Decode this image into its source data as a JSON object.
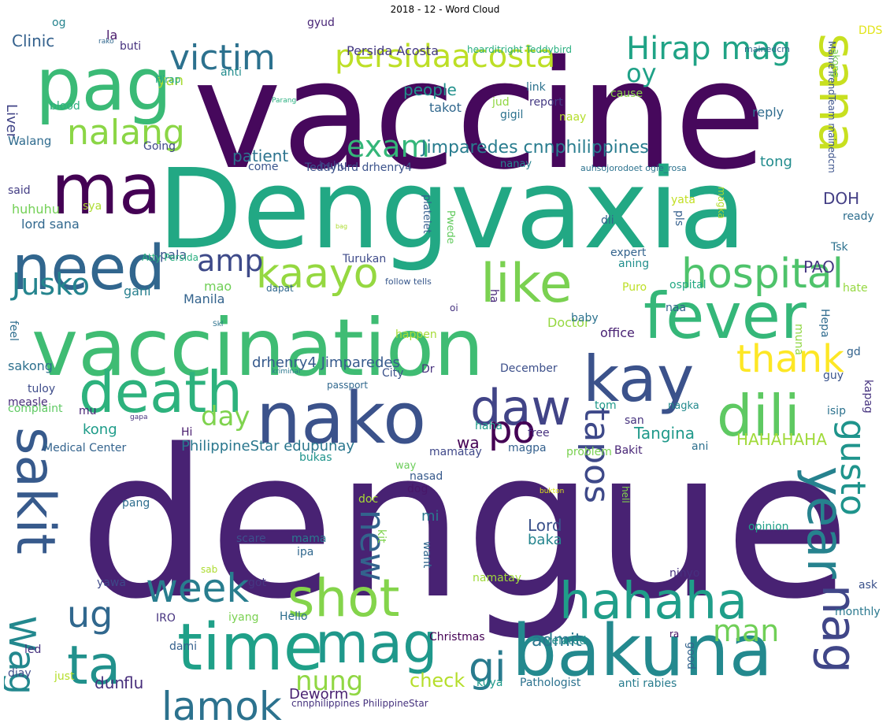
{
  "title": "2018 - 12 - Word Cloud",
  "colormap": "viridis",
  "words": [
    {
      "text": "dengue",
      "color": "#482273"
    },
    {
      "text": "vaccine",
      "color": "#46085c"
    },
    {
      "text": "Dengvaxia",
      "color": "#22a884"
    },
    {
      "text": "vaccination",
      "color": "#3fbc73"
    },
    {
      "text": "nako",
      "color": "#3b528b"
    },
    {
      "text": "bakuna",
      "color": "#23898e"
    },
    {
      "text": "pag",
      "color": "#3aba76"
    },
    {
      "text": "ma",
      "color": "#440154"
    },
    {
      "text": "death",
      "color": "#2db27d"
    },
    {
      "text": "time",
      "color": "#1fa088"
    },
    {
      "text": "need",
      "color": "#31668e"
    },
    {
      "text": "fever",
      "color": "#35b779"
    },
    {
      "text": "kay",
      "color": "#3b528b"
    },
    {
      "text": "dili",
      "color": "#5ec962"
    },
    {
      "text": "like",
      "color": "#7ad151"
    },
    {
      "text": "shot",
      "color": "#84d44b"
    },
    {
      "text": "hahaha",
      "color": "#1f9e89"
    },
    {
      "text": "year",
      "color": "#26828e"
    },
    {
      "text": "mag",
      "color": "#1f988b"
    },
    {
      "text": "ta",
      "color": "#21918c"
    },
    {
      "text": "lamok",
      "color": "#2c728e"
    },
    {
      "text": "sakit",
      "color": "#375a8c"
    },
    {
      "text": "sana",
      "color": "#c8e020"
    },
    {
      "text": "daw",
      "color": "#414487"
    },
    {
      "text": "hospital",
      "color": "#4ec36b"
    },
    {
      "text": "kaayo",
      "color": "#95d840"
    },
    {
      "text": "nalang",
      "color": "#8bd646"
    },
    {
      "text": "victim",
      "color": "#2c718e"
    },
    {
      "text": "persidaacosta",
      "color": "#bddf26"
    },
    {
      "text": "Hirap mag",
      "color": "#20a386"
    },
    {
      "text": "exam",
      "color": "#34b679"
    },
    {
      "text": "Jimparedes cnnphilippines",
      "color": "#287c8e"
    },
    {
      "text": "thank",
      "color": "#fde725"
    },
    {
      "text": "tapos",
      "color": "#3e4989"
    },
    {
      "text": "gusto",
      "color": "#1f948c"
    },
    {
      "text": "week",
      "color": "#287d8e"
    },
    {
      "text": "ug",
      "color": "#31688e"
    },
    {
      "text": "Wag",
      "color": "#23888e"
    },
    {
      "text": "gi",
      "color": "#297b8e"
    },
    {
      "text": "nag",
      "color": "#404688"
    },
    {
      "text": "man",
      "color": "#70cf57"
    },
    {
      "text": "nung",
      "color": "#90d743"
    },
    {
      "text": "Jusko",
      "color": "#25848e"
    },
    {
      "text": "amp",
      "color": "#3e4a89"
    },
    {
      "text": "day",
      "color": "#7fd34e"
    },
    {
      "text": "po",
      "color": "#440154"
    },
    {
      "text": "new",
      "color": "#33638d"
    },
    {
      "text": "oy",
      "color": "#1fa187"
    },
    {
      "text": "check",
      "color": "#b5de2b"
    },
    {
      "text": "admit",
      "color": "#2a768e"
    },
    {
      "text": "dun",
      "color": "#46327e"
    },
    {
      "text": "flu",
      "color": "#472d7b"
    },
    {
      "text": "Deworm",
      "color": "#482071"
    },
    {
      "text": "Tangina",
      "color": "#1f998a"
    },
    {
      "text": "HAHAHAHA",
      "color": "#a0da39"
    },
    {
      "text": "kong",
      "color": "#1e9c89"
    },
    {
      "text": "PhilippineStar edupunay",
      "color": "#2a778e"
    },
    {
      "text": "drhenry4 Jimparedes",
      "color": "#375b8d"
    },
    {
      "text": "patient",
      "color": "#2c738e"
    },
    {
      "text": "tong",
      "color": "#228c8d"
    },
    {
      "text": "DOH",
      "color": "#433e85"
    },
    {
      "text": "PAO",
      "color": "#453882"
    },
    {
      "text": "Lord",
      "color": "#3b528b"
    },
    {
      "text": "baka",
      "color": "#25858e"
    },
    {
      "text": "mi",
      "color": "#2a788e"
    },
    {
      "text": "wa",
      "color": "#440154"
    },
    {
      "text": "Persida Acosta",
      "color": "#443983"
    },
    {
      "text": "Clinic",
      "color": "#34618d"
    },
    {
      "text": "people",
      "color": "#21918c"
    },
    {
      "text": "yan",
      "color": "#a8db34"
    },
    {
      "text": "Liver",
      "color": "#414487"
    },
    {
      "text": "Walang",
      "color": "#2f6b8e"
    },
    {
      "text": "huhuhu",
      "color": "#73d056"
    },
    {
      "text": "lord sana",
      "color": "#31688e"
    },
    {
      "text": "pala",
      "color": "#39568c"
    },
    {
      "text": "mao",
      "color": "#70cf57"
    },
    {
      "text": "Manila",
      "color": "#33638d"
    },
    {
      "text": "gani",
      "color": "#277f8e"
    },
    {
      "text": "sakong",
      "color": "#2d708e"
    },
    {
      "text": "tuloy",
      "color": "#3e4c8a"
    },
    {
      "text": "measle",
      "color": "#472c7a"
    },
    {
      "text": "complaint",
      "color": "#5ec962"
    },
    {
      "text": "mu",
      "color": "#482475"
    },
    {
      "text": "Medical Center",
      "color": "#33638d"
    },
    {
      "text": "Hi",
      "color": "#481b6d"
    },
    {
      "text": "feel",
      "color": "#2e6e8e"
    },
    {
      "text": "said",
      "color": "#433d84"
    },
    {
      "text": "sya",
      "color": "#addc30"
    },
    {
      "text": "Going",
      "color": "#3f4788"
    },
    {
      "text": "blood",
      "color": "#2ab07f"
    },
    {
      "text": "anti",
      "color": "#228c8d"
    },
    {
      "text": "og",
      "color": "#25838e"
    },
    {
      "text": "la",
      "color": "#48186a"
    },
    {
      "text": "buti",
      "color": "#46327e"
    },
    {
      "text": "Hirap",
      "color": "#21a585"
    },
    {
      "text": "gyud",
      "color": "#482677"
    },
    {
      "text": "hearditright Teddybird",
      "color": "#29af7f"
    },
    {
      "text": "DDS",
      "color": "#e2e418"
    },
    {
      "text": "mainedcm",
      "color": "#31688e"
    },
    {
      "text": "MaineTrendTeam mainedcm",
      "color": "#3b528b"
    },
    {
      "text": "akong",
      "color": "#7ad151"
    },
    {
      "text": "link",
      "color": "#2c728e"
    },
    {
      "text": "takot",
      "color": "#31688e"
    },
    {
      "text": "jud",
      "color": "#90d743"
    },
    {
      "text": "report",
      "color": "#443983"
    },
    {
      "text": "gigil",
      "color": "#2c728e"
    },
    {
      "text": "naay",
      "color": "#b5de2b"
    },
    {
      "text": "cause",
      "color": "#86d549"
    },
    {
      "text": "reply",
      "color": "#2f6c8e"
    },
    {
      "text": "huhu",
      "color": "#433e85"
    },
    {
      "text": "nanay",
      "color": "#25838e"
    },
    {
      "text": "come",
      "color": "#3a548c"
    },
    {
      "text": "Teddybird drhenry4",
      "color": "#3b528b"
    },
    {
      "text": "auhsojorodoet ogie_rosa",
      "color": "#2c728e"
    },
    {
      "text": "yata",
      "color": "#c2df23"
    },
    {
      "text": "pls",
      "color": "#355f8d"
    },
    {
      "text": "magka",
      "color": "#b2dd2d"
    },
    {
      "text": "ready",
      "color": "#2e6e8e"
    },
    {
      "text": "dli",
      "color": "#33638d"
    },
    {
      "text": "Pwede",
      "color": "#63cb5f"
    },
    {
      "text": "platelet",
      "color": "#355e8d"
    },
    {
      "text": "Turukan",
      "color": "#3e4a89"
    },
    {
      "text": "Atty Persida",
      "color": "#29af7f"
    },
    {
      "text": "expert",
      "color": "#33638d"
    },
    {
      "text": "aning",
      "color": "#218f8d"
    },
    {
      "text": "Tsk",
      "color": "#2c718e"
    },
    {
      "text": "follow tells",
      "color": "#38588c"
    },
    {
      "text": "Puro",
      "color": "#bddf26"
    },
    {
      "text": "ospital",
      "color": "#23a983"
    },
    {
      "text": "hate",
      "color": "#95d840"
    },
    {
      "text": "dapat",
      "color": "#31688e"
    },
    {
      "text": "ha",
      "color": "#482979"
    },
    {
      "text": "Doctor",
      "color": "#95d840"
    },
    {
      "text": "baby",
      "color": "#2c728e"
    },
    {
      "text": "naa",
      "color": "#33638d"
    },
    {
      "text": "oi",
      "color": "#46337f"
    },
    {
      "text": "office",
      "color": "#482173"
    },
    {
      "text": "Hepa",
      "color": "#2f6b8e"
    },
    {
      "text": "muna",
      "color": "#90d743"
    },
    {
      "text": "gd",
      "color": "#33638d"
    },
    {
      "text": "happen",
      "color": "#a5db36"
    },
    {
      "text": "Dr",
      "color": "#46307e"
    },
    {
      "text": "City",
      "color": "#3b528b"
    },
    {
      "text": "December",
      "color": "#3c4f8a"
    },
    {
      "text": "passport",
      "color": "#31688e"
    },
    {
      "text": "guy",
      "color": "#3a548c"
    },
    {
      "text": "kapag",
      "color": "#46337f"
    },
    {
      "text": "tom",
      "color": "#1f998a"
    },
    {
      "text": "san",
      "color": "#46327e"
    },
    {
      "text": "nagka",
      "color": "#238a8d"
    },
    {
      "text": "isip",
      "color": "#2c728e"
    },
    {
      "text": "haha",
      "color": "#1e9b8a"
    },
    {
      "text": "free",
      "color": "#46307e"
    },
    {
      "text": "ani",
      "color": "#2d708e"
    },
    {
      "text": "magpa",
      "color": "#34608d"
    },
    {
      "text": "problem",
      "color": "#7ad151"
    },
    {
      "text": "mamatay",
      "color": "#3f4889"
    },
    {
      "text": "Bakit",
      "color": "#482576"
    },
    {
      "text": "bukas",
      "color": "#1f948c"
    },
    {
      "text": "way",
      "color": "#6ccd5a"
    },
    {
      "text": "nasad",
      "color": "#375a8c"
    },
    {
      "text": "dog",
      "color": "#481769"
    },
    {
      "text": "doc",
      "color": "#a8db34"
    },
    {
      "text": "bukton",
      "color": "#dde318"
    },
    {
      "text": "hell",
      "color": "#80d34e"
    },
    {
      "text": "pang",
      "color": "#2e6d8e"
    },
    {
      "text": "scare",
      "color": "#3c508b"
    },
    {
      "text": "mama",
      "color": "#2a788e"
    },
    {
      "text": "ipa",
      "color": "#31688e"
    },
    {
      "text": "kit",
      "color": "#7fd34e"
    },
    {
      "text": "want",
      "color": "#31678e"
    },
    {
      "text": "opinion",
      "color": "#1fa088"
    },
    {
      "text": "sab",
      "color": "#addc30"
    },
    {
      "text": "got",
      "color": "#453781"
    },
    {
      "text": "yawa",
      "color": "#3e4989"
    },
    {
      "text": "namatay",
      "color": "#9fda3a"
    },
    {
      "text": "ninyo",
      "color": "#46307e"
    },
    {
      "text": "ask",
      "color": "#3b528b"
    },
    {
      "text": "iyang",
      "color": "#7ad151"
    },
    {
      "text": "IRO",
      "color": "#46337f"
    },
    {
      "text": "Hello",
      "color": "#2e6f8e"
    },
    {
      "text": "monthly",
      "color": "#2a788e"
    },
    {
      "text": "Christmas",
      "color": "#440154"
    },
    {
      "text": "related",
      "color": "#21918c"
    },
    {
      "text": "ra",
      "color": "#471063"
    },
    {
      "text": "good",
      "color": "#33638d"
    },
    {
      "text": "led",
      "color": "#46307e"
    },
    {
      "text": "dami",
      "color": "#34608d"
    },
    {
      "text": "diay",
      "color": "#3e4c8a"
    },
    {
      "text": "just",
      "color": "#b5de2b"
    },
    {
      "text": "kuya",
      "color": "#1f998a"
    },
    {
      "text": "Pathologist",
      "color": "#2c728e"
    },
    {
      "text": "anti rabies",
      "color": "#287c8e"
    },
    {
      "text": "cnnphilippines PhilippineStar",
      "color": "#46327e"
    },
    {
      "text": "rako",
      "color": "#31688e"
    },
    {
      "text": "Parang",
      "color": "#29af7f"
    },
    {
      "text": "bag",
      "color": "#addc30"
    },
    {
      "text": "Skl",
      "color": "#2c728e"
    },
    {
      "text": "kriminal",
      "color": "#2a788e"
    },
    {
      "text": "gapa",
      "color": "#46327e"
    }
  ]
}
